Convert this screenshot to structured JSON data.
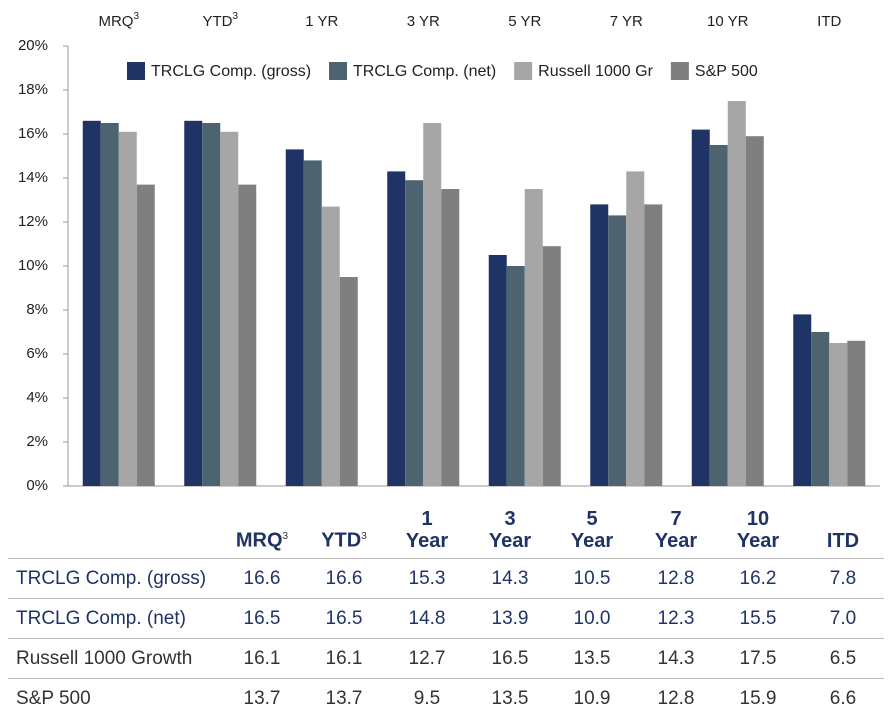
{
  "chart_data": {
    "type": "bar",
    "categories": [
      "MRQ",
      "YTD",
      "1 YR",
      "3 YR",
      "5 YR",
      "7 YR",
      "10 YR",
      "ITD"
    ],
    "category_notes": [
      "3",
      "3",
      null,
      null,
      null,
      null,
      null,
      null
    ],
    "series": [
      {
        "name": "TRCLG Comp. (gross)",
        "color": "#1f3364",
        "values": [
          16.6,
          16.6,
          15.3,
          14.3,
          10.5,
          12.8,
          16.2,
          7.8
        ]
      },
      {
        "name": "TRCLG Comp. (net)",
        "color": "#4d6470",
        "values": [
          16.5,
          16.5,
          14.8,
          13.9,
          10.0,
          12.3,
          15.5,
          7.0
        ]
      },
      {
        "name": "Russell 1000 Gr",
        "color": "#a6a6a6",
        "values": [
          16.1,
          16.1,
          12.7,
          16.5,
          13.5,
          14.3,
          17.5,
          6.5
        ]
      },
      {
        "name": "S&P 500",
        "color": "#7f7f7f",
        "values": [
          13.7,
          13.7,
          9.5,
          13.5,
          10.9,
          12.8,
          15.9,
          6.6
        ]
      }
    ],
    "ylim": [
      0,
      20
    ],
    "yticks": [
      {
        "value": 0,
        "label": "0%"
      },
      {
        "value": 2,
        "label": "2%"
      },
      {
        "value": 4,
        "label": "4%"
      },
      {
        "value": 6,
        "label": "6%"
      },
      {
        "value": 8,
        "label": "8%"
      },
      {
        "value": 10,
        "label": "10%"
      },
      {
        "value": 12,
        "label": "12%"
      },
      {
        "value": 14,
        "label": "14%"
      },
      {
        "value": 16,
        "label": "16%"
      },
      {
        "value": 18,
        "label": "18%"
      },
      {
        "value": 20,
        "label": "20%"
      }
    ],
    "grid": false
  },
  "table": {
    "columns": [
      "MRQ",
      "YTD",
      "1 Year",
      "3 Year",
      "5 Year",
      "7 Year",
      "10 Year",
      "ITD"
    ],
    "column_notes": [
      "3",
      "3",
      null,
      null,
      null,
      null,
      null,
      null
    ],
    "rows": [
      [
        "TRCLG Comp. (gross)",
        "16.6",
        "16.6",
        "15.3",
        "14.3",
        "10.5",
        "12.8",
        "16.2",
        "7.8"
      ],
      [
        "TRCLG Comp. (net)",
        "16.5",
        "16.5",
        "14.8",
        "13.9",
        "10.0",
        "12.3",
        "15.5",
        "7.0"
      ],
      [
        "Russell 1000 Growth",
        "16.1",
        "16.1",
        "12.7",
        "16.5",
        "13.5",
        "14.3",
        "17.5",
        "6.5"
      ],
      [
        "S&P 500",
        "13.7",
        "13.7",
        "9.5",
        "13.5",
        "10.9",
        "12.8",
        "15.9",
        "6.6"
      ]
    ]
  }
}
